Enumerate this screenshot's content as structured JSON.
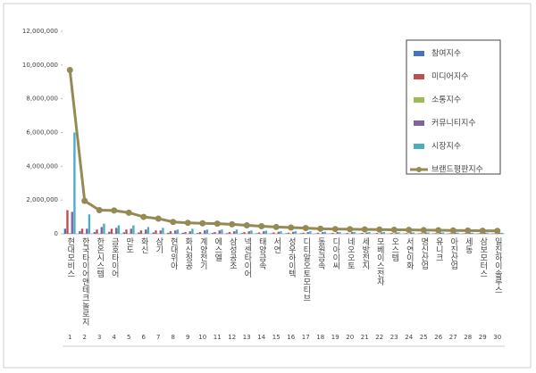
{
  "chart_data": {
    "type": "bar-line",
    "categories": [
      "현대모비스",
      "한국타이어앤테크놀로지",
      "한온시스템",
      "금호타이어",
      "만도",
      "화신",
      "삼기",
      "현대위아",
      "화신정공",
      "계양전기",
      "에스엘",
      "삼성공조",
      "넥센타이어",
      "태양금속",
      "서연",
      "성우하이텍",
      "디티알오토모티브",
      "동원금속",
      "디아이씨",
      "네오오토",
      "세방전지",
      "모베이스전자",
      "오스템",
      "서연이화",
      "명신산업",
      "유니크",
      "아진산업",
      "세동",
      "삼보모터스",
      "일진하이솔루스"
    ],
    "ranks": [
      1,
      2,
      3,
      4,
      5,
      6,
      7,
      8,
      9,
      10,
      11,
      12,
      13,
      14,
      15,
      16,
      17,
      18,
      19,
      20,
      21,
      22,
      23,
      24,
      25,
      26,
      27,
      28,
      29,
      30
    ],
    "series": [
      {
        "name": "참여지수",
        "color": "#4472c4",
        "kind": "bar",
        "values": [
          300000,
          150000,
          100000,
          120000,
          90000,
          80000,
          80000,
          60000,
          60000,
          50000,
          50000,
          40000,
          40000,
          30000,
          30000,
          30000,
          30000,
          20000,
          20000,
          20000,
          20000,
          20000,
          20000,
          20000,
          20000,
          20000,
          20000,
          20000,
          20000,
          20000
        ]
      },
      {
        "name": "미디어지수",
        "color": "#c0504d",
        "kind": "bar",
        "values": [
          1400000,
          300000,
          250000,
          300000,
          250000,
          200000,
          200000,
          150000,
          100000,
          100000,
          100000,
          100000,
          100000,
          80000,
          80000,
          60000,
          60000,
          60000,
          50000,
          50000,
          50000,
          50000,
          50000,
          40000,
          40000,
          40000,
          40000,
          40000,
          40000,
          30000
        ]
      },
      {
        "name": "소통지수",
        "color": "#9bbb59",
        "kind": "bar",
        "values": [
          50000,
          20000,
          20000,
          20000,
          20000,
          10000,
          10000,
          10000,
          10000,
          10000,
          10000,
          10000,
          10000,
          10000,
          10000,
          10000,
          10000,
          10000,
          10000,
          10000,
          10000,
          10000,
          10000,
          10000,
          10000,
          10000,
          10000,
          10000,
          10000,
          10000
        ]
      },
      {
        "name": "커뮤니티지수",
        "color": "#8064a2",
        "kind": "bar",
        "values": [
          1300000,
          300000,
          400000,
          350000,
          300000,
          250000,
          200000,
          200000,
          150000,
          200000,
          200000,
          150000,
          150000,
          150000,
          120000,
          120000,
          100000,
          100000,
          100000,
          100000,
          80000,
          80000,
          80000,
          80000,
          80000,
          70000,
          70000,
          60000,
          60000,
          60000
        ]
      },
      {
        "name": "시장지수",
        "color": "#4bacc6",
        "kind": "bar",
        "values": [
          6000000,
          1150000,
          600000,
          500000,
          500000,
          400000,
          350000,
          250000,
          300000,
          250000,
          250000,
          250000,
          200000,
          180000,
          150000,
          150000,
          150000,
          120000,
          100000,
          100000,
          100000,
          100000,
          90000,
          80000,
          80000,
          80000,
          70000,
          60000,
          60000,
          60000
        ]
      },
      {
        "name": "브랜드평판지수",
        "color": "#948a54",
        "kind": "line",
        "values": [
          9700000,
          1950000,
          1400000,
          1380000,
          1250000,
          1000000,
          900000,
          700000,
          650000,
          620000,
          600000,
          560000,
          500000,
          450000,
          400000,
          370000,
          340000,
          300000,
          280000,
          270000,
          260000,
          250000,
          240000,
          230000,
          220000,
          210000,
          200000,
          190000,
          180000,
          170000
        ]
      }
    ],
    "ylim": [
      0,
      12000000
    ],
    "yticks": [
      {
        "value": 0,
        "label": "0"
      },
      {
        "value": 2000000,
        "label": "2,000,000"
      },
      {
        "value": 4000000,
        "label": "4,000,000"
      },
      {
        "value": 6000000,
        "label": "6,000,000"
      },
      {
        "value": 8000000,
        "label": "8,000,000"
      },
      {
        "value": 10000000,
        "label": "10,000,000"
      },
      {
        "value": 12000000,
        "label": "12,000,000"
      }
    ],
    "legend": "right"
  }
}
